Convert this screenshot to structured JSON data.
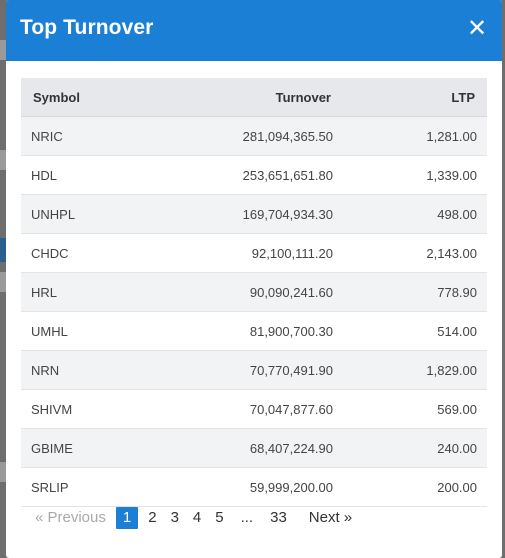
{
  "modal": {
    "title": "Top Turnover"
  },
  "table": {
    "headers": {
      "symbol": "Symbol",
      "turnover": "Turnover",
      "ltp": "LTP"
    },
    "rows": [
      {
        "symbol": "NRIC",
        "turnover": "281,094,365.50",
        "ltp": "1,281.00"
      },
      {
        "symbol": "HDL",
        "turnover": "253,651,651.80",
        "ltp": "1,339.00"
      },
      {
        "symbol": "UNHPL",
        "turnover": "169,704,934.30",
        "ltp": "498.00"
      },
      {
        "symbol": "CHDC",
        "turnover": "92,100,111.20",
        "ltp": "2,143.00"
      },
      {
        "symbol": "HRL",
        "turnover": "90,090,241.60",
        "ltp": "778.90"
      },
      {
        "symbol": "UMHL",
        "turnover": "81,900,700.30",
        "ltp": "514.00"
      },
      {
        "symbol": "NRN",
        "turnover": "70,770,491.90",
        "ltp": "1,829.00"
      },
      {
        "symbol": "SHIVM",
        "turnover": "70,047,877.60",
        "ltp": "569.00"
      },
      {
        "symbol": "GBIME",
        "turnover": "68,407,224.90",
        "ltp": "240.00"
      },
      {
        "symbol": "SRLIP",
        "turnover": "59,999,200.00",
        "ltp": "200.00"
      }
    ]
  },
  "pagination": {
    "previous": "« Previous",
    "pages": [
      "1",
      "2",
      "3",
      "4",
      "5"
    ],
    "ellipsis": "...",
    "last": "33",
    "next": "Next »",
    "active_page": "1"
  },
  "colors": {
    "header": "#1c7fd6",
    "active_page": "#1c7fd6"
  }
}
